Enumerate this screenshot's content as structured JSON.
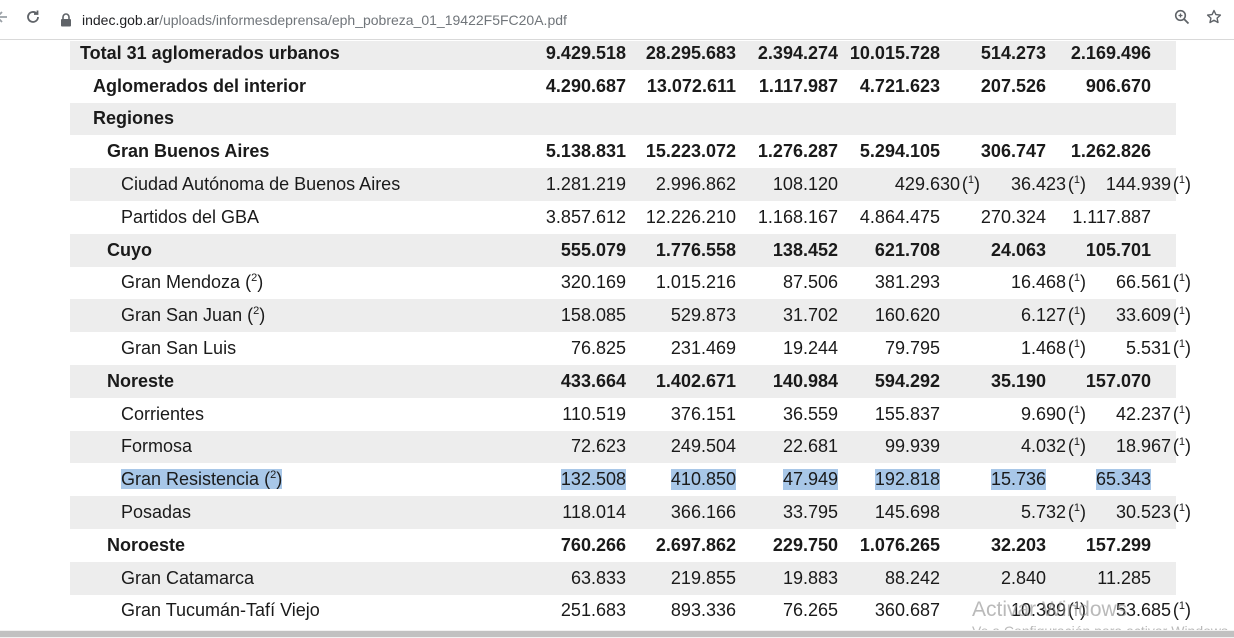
{
  "browser": {
    "url_host": "indec.gob.ar",
    "url_path": "/uploads/informesdeprensa/eph_pobreza_01_19422F5FC20A.pdf"
  },
  "table": {
    "rows": [
      {
        "label": "Total 31 aglomerados urbanos",
        "level": 0,
        "bold": true,
        "shade": true,
        "values": [
          "9.429.518",
          "28.295.683",
          "2.394.274",
          "10.015.728",
          "514.273",
          "2.169.496"
        ],
        "notes": [
          "",
          "",
          "",
          "",
          "",
          ""
        ]
      },
      {
        "label": "Aglomerados del interior",
        "level": 1,
        "bold": true,
        "shade": false,
        "values": [
          "4.290.687",
          "13.072.611",
          "1.117.987",
          "4.721.623",
          "207.526",
          "906.670"
        ],
        "notes": [
          "",
          "",
          "",
          "",
          "",
          ""
        ]
      },
      {
        "label": "Regiones",
        "level": 1,
        "bold": true,
        "shade": true,
        "values": [
          "",
          "",
          "",
          "",
          "",
          ""
        ],
        "notes": [
          "",
          "",
          "",
          "",
          "",
          ""
        ]
      },
      {
        "label": "Gran Buenos Aires",
        "level": 2,
        "bold": true,
        "shade": false,
        "values": [
          "5.138.831",
          "15.223.072",
          "1.276.287",
          "5.294.105",
          "306.747",
          "1.262.826"
        ],
        "notes": [
          "",
          "",
          "",
          "",
          "",
          ""
        ]
      },
      {
        "label": "Ciudad Autónoma de Buenos Aires",
        "level": 3,
        "bold": false,
        "shade": true,
        "values": [
          "1.281.219",
          "2.996.862",
          "108.120",
          "429.630",
          "36.423",
          "144.939"
        ],
        "notes": [
          "",
          "",
          "",
          "1",
          "1",
          "1"
        ]
      },
      {
        "label": "Partidos del GBA",
        "level": 3,
        "bold": false,
        "shade": false,
        "values": [
          "3.857.612",
          "12.226.210",
          "1.168.167",
          "4.864.475",
          "270.324",
          "1.117.887"
        ],
        "notes": [
          "",
          "",
          "",
          "",
          "",
          ""
        ]
      },
      {
        "label": "Cuyo",
        "level": 2,
        "bold": true,
        "shade": true,
        "values": [
          "555.079",
          "1.776.558",
          "138.452",
          "621.708",
          "24.063",
          "105.701"
        ],
        "notes": [
          "",
          "",
          "",
          "",
          "",
          ""
        ]
      },
      {
        "label": "Gran Mendoza",
        "label_note": "2",
        "level": 3,
        "bold": false,
        "shade": false,
        "values": [
          "320.169",
          "1.015.216",
          "87.506",
          "381.293",
          "16.468",
          "66.561"
        ],
        "notes": [
          "",
          "",
          "",
          "",
          "1",
          "1"
        ]
      },
      {
        "label": "Gran San Juan",
        "label_note": "2",
        "level": 3,
        "bold": false,
        "shade": true,
        "values": [
          "158.085",
          "529.873",
          "31.702",
          "160.620",
          "6.127",
          "33.609"
        ],
        "notes": [
          "",
          "",
          "",
          "",
          "1",
          "1"
        ]
      },
      {
        "label": "Gran San Luis",
        "level": 3,
        "bold": false,
        "shade": false,
        "values": [
          "76.825",
          "231.469",
          "19.244",
          "79.795",
          "1.468",
          "5.531"
        ],
        "notes": [
          "",
          "",
          "",
          "",
          "1",
          "1"
        ]
      },
      {
        "label": "Noreste",
        "level": 2,
        "bold": true,
        "shade": true,
        "values": [
          "433.664",
          "1.402.671",
          "140.984",
          "594.292",
          "35.190",
          "157.070"
        ],
        "notes": [
          "",
          "",
          "",
          "",
          "",
          ""
        ]
      },
      {
        "label": "Corrientes",
        "level": 3,
        "bold": false,
        "shade": false,
        "values": [
          "110.519",
          "376.151",
          "36.559",
          "155.837",
          "9.690",
          "42.237"
        ],
        "notes": [
          "",
          "",
          "",
          "",
          "1",
          "1"
        ]
      },
      {
        "label": "Formosa",
        "level": 3,
        "bold": false,
        "shade": true,
        "values": [
          "72.623",
          "249.504",
          "22.681",
          "99.939",
          "4.032",
          "18.967"
        ],
        "notes": [
          "",
          "",
          "",
          "",
          "1",
          "1"
        ]
      },
      {
        "label": "Gran Resistencia",
        "label_note": "2",
        "level": 3,
        "bold": false,
        "shade": false,
        "selected": true,
        "values": [
          "132.508",
          "410.850",
          "47.949",
          "192.818",
          "15.736",
          "65.343"
        ],
        "notes": [
          "",
          "",
          "",
          "",
          "",
          ""
        ]
      },
      {
        "label": "Posadas",
        "level": 3,
        "bold": false,
        "shade": true,
        "values": [
          "118.014",
          "366.166",
          "33.795",
          "145.698",
          "5.732",
          "30.523"
        ],
        "notes": [
          "",
          "",
          "",
          "",
          "1",
          "1"
        ]
      },
      {
        "label": "Noroeste",
        "level": 2,
        "bold": true,
        "shade": false,
        "values": [
          "760.266",
          "2.697.862",
          "229.750",
          "1.076.265",
          "32.203",
          "157.299"
        ],
        "notes": [
          "",
          "",
          "",
          "",
          "",
          ""
        ]
      },
      {
        "label": "Gran Catamarca",
        "level": 3,
        "bold": false,
        "shade": true,
        "values": [
          "63.833",
          "219.855",
          "19.883",
          "88.242",
          "2.840",
          "11.285"
        ],
        "notes": [
          "",
          "",
          "",
          "",
          "",
          ""
        ]
      },
      {
        "label": "Gran Tucumán-Tafí Viejo",
        "level": 3,
        "bold": false,
        "shade": false,
        "values": [
          "251.683",
          "893.336",
          "76.265",
          "360.687",
          "10.389",
          "53.685"
        ],
        "notes": [
          "",
          "",
          "",
          "",
          "1",
          "1"
        ]
      }
    ]
  },
  "watermark": {
    "line1": "Activar Windows",
    "line2": "Ve a Configuración para activar Windows."
  },
  "icons": {
    "back": "arrow-left-icon",
    "reload": "reload-icon",
    "lock": "lock-icon",
    "zoom": "zoom-icon",
    "bookmark": "star-icon"
  }
}
